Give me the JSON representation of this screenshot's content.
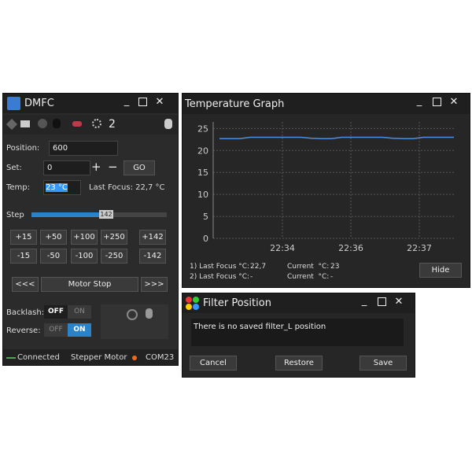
{
  "dmfc": {
    "title": "DMFC",
    "toolbar_count": "2",
    "position": {
      "label": "Position:",
      "value": "600"
    },
    "set": {
      "label": "Set:",
      "value": "0",
      "plus": "+",
      "minus": "−",
      "go": "GO"
    },
    "temp": {
      "label": "Temp:",
      "value": "23 °C",
      "last_focus": "Last Focus: 22,7 °C"
    },
    "step": {
      "label": "Step",
      "value": "142"
    },
    "plus_buttons": [
      "+15",
      "+50",
      "+100",
      "+250",
      "+142"
    ],
    "minus_buttons": [
      "-15",
      "-50",
      "-100",
      "-250",
      "-142"
    ],
    "motor": {
      "back": "<<<",
      "stop": "Motor Stop",
      "forward": ">>>"
    },
    "backlash": {
      "label": "Backlash:",
      "off": "OFF",
      "on": "ON"
    },
    "reverse": {
      "label": "Reverse:",
      "off": "OFF",
      "on": "ON"
    },
    "status": {
      "connection": "Connected",
      "motor_type": "Stepper Motor",
      "port": "COM23"
    }
  },
  "temperature_graph": {
    "title": "Temperature Graph",
    "chart": {
      "type": "line",
      "color": "#4a90e2",
      "values": [
        22.7,
        22.7,
        22.7,
        23,
        23,
        23,
        23,
        23,
        23,
        22.8,
        22.7,
        22.7,
        23,
        23,
        23,
        23,
        23,
        22.8,
        22.7,
        22.7,
        23,
        23,
        23,
        23
      ],
      "ylim": [
        0,
        26.5
      ],
      "yticks": [
        0,
        5,
        10,
        15,
        20,
        25
      ],
      "xticks": [
        "22:34",
        "22:36",
        "22:37"
      ],
      "grid": true
    },
    "rows": [
      {
        "label": "1) Last Focus °C:",
        "last_focus": "22,7",
        "current_label": "Current  °C:",
        "current": "23"
      },
      {
        "label": "2) Last Focus °C:",
        "last_focus": "-",
        "current_label": "Current  °C:",
        "current": "-"
      }
    ],
    "hide": "Hide"
  },
  "filter_position": {
    "title": "Filter Position",
    "message": "There is no saved filter_L position",
    "buttons": [
      "Cancel",
      "Restore",
      "Save"
    ]
  }
}
